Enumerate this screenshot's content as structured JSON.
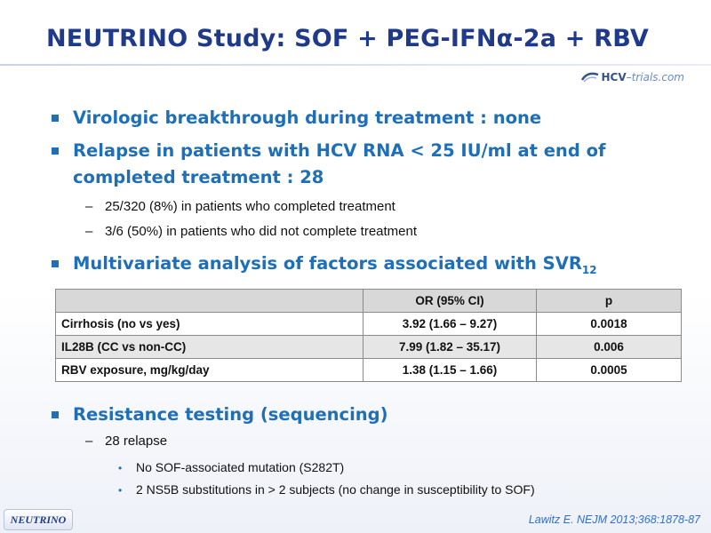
{
  "title": "NEUTRINO Study: SOF + PEG-IFNα-2a + RBV",
  "logo": {
    "hcv": "HCV",
    "dash": "–",
    "rest": "trials.com"
  },
  "bullets": {
    "b1": "Virologic breakthrough during treatment : none",
    "b2_line1": "Relapse in patients with HCV RNA < 25 IU/ml at end of",
    "b2_line2": "completed treatment : 28",
    "b2_sub1": "25/320 (8%) in patients who completed treatment",
    "b2_sub2": "3/6 (50%) in patients who did not complete treatment",
    "b3_main": "Multivariate analysis of factors associated with SVR",
    "b3_sub": "12",
    "b4": "Resistance testing (sequencing)",
    "b4_sub1": "28 relapse",
    "b4_sub1_a": "No SOF-associated mutation (S282T)",
    "b4_sub1_b": "2 NS5B substitutions in > 2 subjects (no change in susceptibility to SOF)"
  },
  "table": {
    "headers": [
      "",
      "OR (95% CI)",
      "p"
    ],
    "rows": [
      [
        "Cirrhosis (no vs yes)",
        "3.92 (1.66 – 9.27)",
        "0.0018"
      ],
      [
        "IL28B (CC vs non-CC)",
        "7.99 (1.82 – 35.17)",
        "0.006"
      ],
      [
        "RBV exposure, mg/kg/day",
        "1.38 (1.15 – 1.66)",
        "0.0005"
      ]
    ]
  },
  "badge": "NEUTRINO",
  "citation": "Lawitz E. NEJM 2013;368:1878-87",
  "colors": {
    "title": "#1f3a8a",
    "bullet": "#1f6fb8",
    "citation": "#2f6fd0"
  }
}
